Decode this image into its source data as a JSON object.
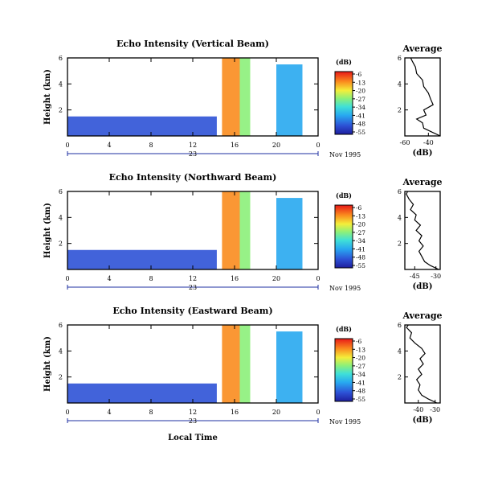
{
  "chart_data": [
    {
      "type": "heatmap",
      "title": "Echo Intensity (Vertical Beam)",
      "ylabel": "Height (km)",
      "xlabel": "",
      "x_ticks": [
        "0",
        "4",
        "8",
        "12",
        "16",
        "20",
        "0"
      ],
      "xlim": [
        0,
        24
      ],
      "y_ticks": [
        "6",
        "4",
        "2"
      ],
      "ylim": [
        0,
        6
      ],
      "date_label": "23",
      "date_suffix": "Nov 1995",
      "colorbar": {
        "unit": "(dB)",
        "ticks": [
          "-6",
          "-13",
          "-20",
          "-27",
          "-34",
          "-41",
          "-48",
          "-55"
        ],
        "range": [
          -55,
          -6
        ]
      },
      "echo_regions": [
        {
          "x_start": 0,
          "x_end": 14.3,
          "height_top_km": 1.5,
          "db": -50
        },
        {
          "x_start": 14.8,
          "x_end": 16.5,
          "height_top_km": 6,
          "db": -12
        },
        {
          "x_start": 16.5,
          "x_end": 17.5,
          "height_top_km": 6,
          "db": -30
        },
        {
          "x_start": 20,
          "x_end": 22.5,
          "height_top_km": 5.5,
          "db": -40
        }
      ],
      "profile": {
        "title": "Average",
        "xlabel": "(dB)",
        "x_ticks": [
          "-60",
          "-40"
        ],
        "xlim": [
          -60,
          -30
        ],
        "y_ticks": [
          "6",
          "4",
          "2"
        ],
        "ylim": [
          0,
          6
        ],
        "points": [
          [
            -30,
            0.0
          ],
          [
            -37,
            0.3
          ],
          [
            -44,
            0.6
          ],
          [
            -45,
            1.0
          ],
          [
            -50,
            1.3
          ],
          [
            -42,
            1.6
          ],
          [
            -44,
            2.0
          ],
          [
            -36,
            2.4
          ],
          [
            -38,
            2.8
          ],
          [
            -40,
            3.3
          ],
          [
            -44,
            3.8
          ],
          [
            -45,
            4.3
          ],
          [
            -50,
            4.8
          ],
          [
            -51,
            5.3
          ],
          [
            -54,
            5.8
          ],
          [
            -55,
            6.0
          ]
        ]
      }
    },
    {
      "type": "heatmap",
      "title": "Echo Intensity (Northward Beam)",
      "ylabel": "Height (km)",
      "xlabel": "",
      "x_ticks": [
        "0",
        "4",
        "8",
        "12",
        "16",
        "20",
        "0"
      ],
      "xlim": [
        0,
        24
      ],
      "y_ticks": [
        "6",
        "4",
        "2"
      ],
      "ylim": [
        0,
        6
      ],
      "date_label": "23",
      "date_suffix": "Nov 1995",
      "colorbar": {
        "unit": "(dB)",
        "ticks": [
          "-6",
          "-13",
          "-20",
          "-27",
          "-34",
          "-41",
          "-48",
          "-55"
        ],
        "range": [
          -55,
          -6
        ]
      },
      "echo_regions": [
        {
          "x_start": 0,
          "x_end": 14.3,
          "height_top_km": 1.5,
          "db": -50
        },
        {
          "x_start": 14.8,
          "x_end": 16.5,
          "height_top_km": 6,
          "db": -12
        },
        {
          "x_start": 16.5,
          "x_end": 17.5,
          "height_top_km": 6,
          "db": -30
        },
        {
          "x_start": 20,
          "x_end": 22.5,
          "height_top_km": 5.5,
          "db": -40
        }
      ],
      "profile": {
        "title": "Average",
        "xlabel": "(dB)",
        "x_ticks": [
          "-45",
          "-30"
        ],
        "xlim": [
          -52,
          -27
        ],
        "y_ticks": [
          "6",
          "4",
          "2"
        ],
        "ylim": [
          0,
          6
        ],
        "points": [
          [
            -28,
            0.0
          ],
          [
            -34,
            0.3
          ],
          [
            -38,
            0.6
          ],
          [
            -40,
            1.0
          ],
          [
            -42,
            1.4
          ],
          [
            -39,
            1.8
          ],
          [
            -42,
            2.2
          ],
          [
            -40,
            2.6
          ],
          [
            -44,
            3.0
          ],
          [
            -41,
            3.4
          ],
          [
            -45,
            3.8
          ],
          [
            -44,
            4.2
          ],
          [
            -48,
            4.6
          ],
          [
            -46,
            5.0
          ],
          [
            -49,
            5.4
          ],
          [
            -51,
            5.8
          ],
          [
            -50,
            6.0
          ]
        ]
      }
    },
    {
      "type": "heatmap",
      "title": "Echo Intensity (Eastward Beam)",
      "ylabel": "Height (km)",
      "xlabel": "Local Time",
      "x_ticks": [
        "0",
        "4",
        "8",
        "12",
        "16",
        "20",
        "0"
      ],
      "xlim": [
        0,
        24
      ],
      "y_ticks": [
        "6",
        "4",
        "2"
      ],
      "ylim": [
        0,
        6
      ],
      "date_label": "23",
      "date_suffix": "Nov 1995",
      "colorbar": {
        "unit": "(dB)",
        "ticks": [
          "-6",
          "-13",
          "-20",
          "-27",
          "-34",
          "-41",
          "-48",
          "-55"
        ],
        "range": [
          -55,
          -6
        ]
      },
      "echo_regions": [
        {
          "x_start": 0,
          "x_end": 14.3,
          "height_top_km": 1.5,
          "db": -50
        },
        {
          "x_start": 14.8,
          "x_end": 16.5,
          "height_top_km": 6,
          "db": -12
        },
        {
          "x_start": 16.5,
          "x_end": 17.5,
          "height_top_km": 6,
          "db": -30
        },
        {
          "x_start": 20,
          "x_end": 22.5,
          "height_top_km": 5.5,
          "db": -40
        }
      ],
      "profile": {
        "title": "Average",
        "xlabel": "(dB)",
        "x_ticks": [
          "-40",
          "-30"
        ],
        "xlim": [
          -48,
          -27
        ],
        "y_ticks": [
          "6",
          "4",
          "2"
        ],
        "ylim": [
          0,
          6
        ],
        "points": [
          [
            -29,
            0.0
          ],
          [
            -34,
            0.3
          ],
          [
            -38,
            0.6
          ],
          [
            -40,
            1.0
          ],
          [
            -39,
            1.4
          ],
          [
            -41,
            1.8
          ],
          [
            -38,
            2.2
          ],
          [
            -40,
            2.6
          ],
          [
            -37,
            3.0
          ],
          [
            -39,
            3.4
          ],
          [
            -36,
            3.8
          ],
          [
            -38,
            4.2
          ],
          [
            -42,
            4.6
          ],
          [
            -45,
            5.0
          ],
          [
            -44,
            5.4
          ],
          [
            -47,
            5.8
          ],
          [
            -46,
            6.0
          ]
        ]
      }
    }
  ]
}
